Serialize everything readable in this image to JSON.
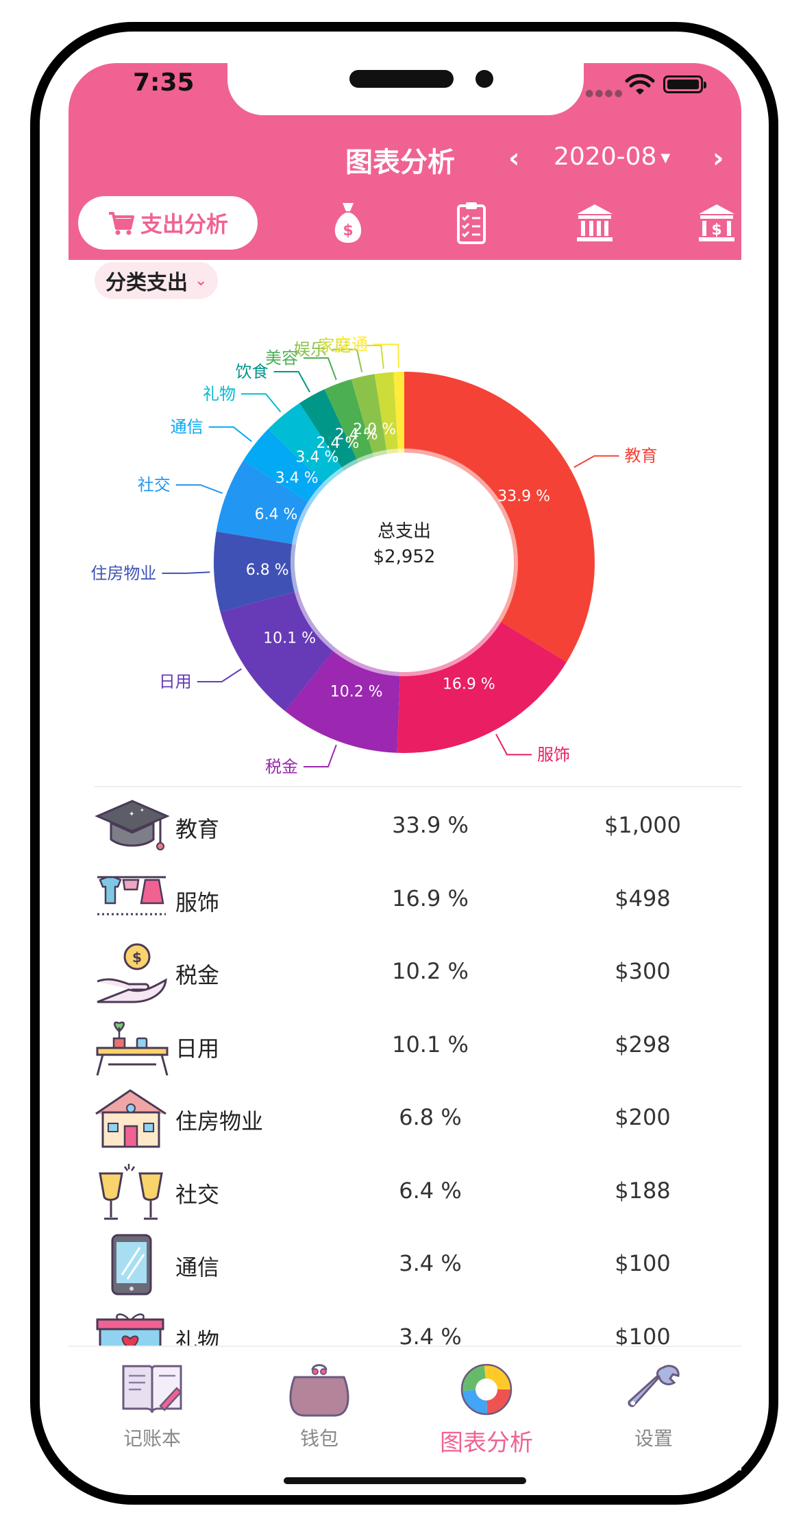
{
  "status_bar": {
    "time": "7:35"
  },
  "header": {
    "title": "图表分析",
    "prev_icon": "chevron-left-icon",
    "next_icon": "chevron-right-icon",
    "month": "2020-08"
  },
  "tabs": {
    "active_label": "支出分析",
    "active_icon": "cart-icon",
    "icons": [
      "money-bag-icon",
      "clipboard-icon",
      "bank-icon",
      "bank-dollar-icon"
    ]
  },
  "filter": {
    "label": "分类支出"
  },
  "chart_data": {
    "type": "pie",
    "center_label": "总支出",
    "center_value": "$2,952",
    "slices": [
      {
        "name": "教育",
        "pct": 33.9,
        "label": "33.9 %",
        "color": "#F44336"
      },
      {
        "name": "服饰",
        "pct": 16.9,
        "label": "16.9 %",
        "color": "#E91E63"
      },
      {
        "name": "税金",
        "pct": 10.2,
        "label": "10.2 %",
        "color": "#9C27B0"
      },
      {
        "name": "日用",
        "pct": 10.1,
        "label": "10.1 %",
        "color": "#673AB7"
      },
      {
        "name": "住房物业",
        "pct": 6.8,
        "label": "6.8 %",
        "color": "#3F51B5"
      },
      {
        "name": "社交",
        "pct": 6.4,
        "label": "6.4 %",
        "color": "#2196F3"
      },
      {
        "name": "通信",
        "pct": 3.4,
        "label": "3.4 %",
        "color": "#03A9F4"
      },
      {
        "name": "礼物",
        "pct": 3.4,
        "label": "3.4 %",
        "color": "#00BCD4"
      },
      {
        "name": "饮食",
        "pct": 2.4,
        "label": "2.4 %",
        "color": "#009688"
      },
      {
        "name": "美容",
        "pct": 2.4,
        "label": "2.4 %",
        "color": "#4CAF50"
      },
      {
        "name": "娱乐",
        "pct": 2.0,
        "label": "2.0 %",
        "color": "#8BC34A"
      },
      {
        "name": "家庭",
        "pct": 1.6,
        "label": "",
        "color": "#CDDC39"
      },
      {
        "name": "交通",
        "pct": 0.9,
        "label": "",
        "color": "#FFEB3B"
      }
    ]
  },
  "list": [
    {
      "name": "教育",
      "pct": "33.9 %",
      "amount": "$1,000",
      "icon": "graduation-cap-icon"
    },
    {
      "name": "服饰",
      "pct": "16.9 %",
      "amount": "$498",
      "icon": "clothes-icon"
    },
    {
      "name": "税金",
      "pct": "10.2 %",
      "amount": "$300",
      "icon": "coin-hand-icon"
    },
    {
      "name": "日用",
      "pct": "10.1 %",
      "amount": "$298",
      "icon": "table-plant-icon"
    },
    {
      "name": "住房物业",
      "pct": "6.8 %",
      "amount": "$200",
      "icon": "house-icon"
    },
    {
      "name": "社交",
      "pct": "6.4 %",
      "amount": "$188",
      "icon": "cheers-icon"
    },
    {
      "name": "通信",
      "pct": "3.4 %",
      "amount": "$100",
      "icon": "phone-icon"
    },
    {
      "name": "礼物",
      "pct": "3.4 %",
      "amount": "$100",
      "icon": "gift-icon"
    }
  ],
  "nav": [
    {
      "label": "记账本",
      "icon": "notebook-icon"
    },
    {
      "label": "钱包",
      "icon": "purse-icon"
    },
    {
      "label": "图表分析",
      "icon": "donut-chart-icon",
      "active": true
    },
    {
      "label": "设置",
      "icon": "wrench-icon"
    }
  ],
  "colors": {
    "accent": "#F06292",
    "tab_bg": "#FCE9EE"
  }
}
